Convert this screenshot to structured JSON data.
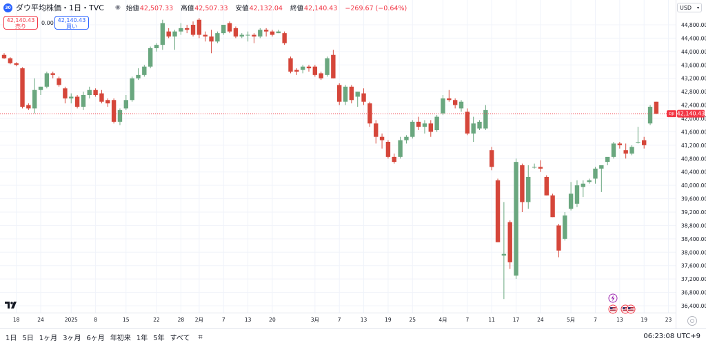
{
  "header": {
    "logo_text": "30",
    "symbol": "ダウ平均株価・1日・TVC",
    "ohlc": [
      {
        "label": "始値",
        "value": "42,507.33"
      },
      {
        "label": "高値",
        "value": "42,507.33"
      },
      {
        "label": "安値",
        "value": "42,132.04"
      },
      {
        "label": "終値",
        "value": "42,140.43"
      }
    ],
    "change": "−269.67 (−0.64%)"
  },
  "trade": {
    "sell_price": "42,140.43",
    "sell_label": "売り",
    "spread": "0.00",
    "buy_price": "42,140.43",
    "buy_label": "買い"
  },
  "currency": "USD",
  "price_tag": {
    "symbol": "DJI",
    "value": "42,140.43"
  },
  "bottom_bar": {
    "ranges": [
      "1日",
      "5日",
      "1ヶ月",
      "3ヶ月",
      "6ヶ月",
      "年初来",
      "1年",
      "5年",
      "すべて"
    ],
    "clock": "06:23:08 UTC+9"
  },
  "colors": {
    "up": "#6aa77f",
    "down": "#d5463a",
    "grid_line": "#f0f3fa",
    "last_price": "#f23645"
  },
  "icon_names": [
    "tradingview-logo-icon",
    "calendar-compare-icon",
    "settings-gear-icon",
    "eye-icon",
    "us-flag-event-icon",
    "lightning-event-icon"
  ],
  "chart_data": {
    "type": "candlestick",
    "title": "ダウ平均株価・1日・TVC",
    "ylim": [
      36300,
      45000
    ],
    "y_ticks": [
      44800,
      44400,
      44000,
      43600,
      43200,
      42800,
      42400,
      42000,
      41600,
      41200,
      40800,
      40400,
      40000,
      39600,
      39200,
      38800,
      38400,
      38000,
      37600,
      37200,
      36800,
      36400
    ],
    "x_tick_labels": [
      {
        "label": "18",
        "i": 2
      },
      {
        "label": "24",
        "i": 6
      },
      {
        "label": "2025",
        "i": 11
      },
      {
        "label": "8",
        "i": 15
      },
      {
        "label": "15",
        "i": 20
      },
      {
        "label": "22",
        "i": 25
      },
      {
        "label": "28",
        "i": 29
      },
      {
        "label": "2月",
        "i": 32
      },
      {
        "label": "7",
        "i": 36
      },
      {
        "label": "13",
        "i": 40
      },
      {
        "label": "20",
        "i": 44
      },
      {
        "label": "3月",
        "i": 51
      },
      {
        "label": "7",
        "i": 55
      },
      {
        "label": "13",
        "i": 59
      },
      {
        "label": "19",
        "i": 63
      },
      {
        "label": "25",
        "i": 67
      },
      {
        "label": "4月",
        "i": 72
      },
      {
        "label": "7",
        "i": 76
      },
      {
        "label": "11",
        "i": 80
      },
      {
        "label": "17",
        "i": 84
      },
      {
        "label": "24",
        "i": 88
      },
      {
        "label": "5月",
        "i": 93
      },
      {
        "label": "7",
        "i": 97
      },
      {
        "label": "13",
        "i": 101
      },
      {
        "label": "19",
        "i": 105
      },
      {
        "label": "23",
        "i": 109
      }
    ],
    "candles": [
      {
        "o": 43900,
        "h": 43950,
        "l": 43780,
        "c": 43800
      },
      {
        "o": 43800,
        "h": 43830,
        "l": 43620,
        "c": 43650
      },
      {
        "o": 43650,
        "h": 43680,
        "l": 43560,
        "c": 43600
      },
      {
        "o": 43500,
        "h": 43530,
        "l": 42300,
        "c": 42350
      },
      {
        "o": 42400,
        "h": 42450,
        "l": 42250,
        "c": 42300
      },
      {
        "o": 42300,
        "h": 43200,
        "l": 42150,
        "c": 42850
      },
      {
        "o": 42850,
        "h": 42950,
        "l": 42700,
        "c": 42950
      },
      {
        "o": 42950,
        "h": 43400,
        "l": 42900,
        "c": 43350
      },
      {
        "o": 43350,
        "h": 43400,
        "l": 43200,
        "c": 43300
      },
      {
        "o": 43200,
        "h": 43250,
        "l": 42950,
        "c": 43000
      },
      {
        "o": 42900,
        "h": 42950,
        "l": 42450,
        "c": 42600
      },
      {
        "o": 42600,
        "h": 42750,
        "l": 42450,
        "c": 42650
      },
      {
        "o": 42650,
        "h": 42700,
        "l": 42300,
        "c": 42350
      },
      {
        "o": 42350,
        "h": 42800,
        "l": 42250,
        "c": 42700
      },
      {
        "o": 42700,
        "h": 42950,
        "l": 42600,
        "c": 42850
      },
      {
        "o": 42850,
        "h": 42900,
        "l": 42650,
        "c": 42700
      },
      {
        "o": 42750,
        "h": 42850,
        "l": 42450,
        "c": 42500
      },
      {
        "o": 42550,
        "h": 42600,
        "l": 42350,
        "c": 42450
      },
      {
        "o": 42550,
        "h": 42600,
        "l": 41850,
        "c": 41900
      },
      {
        "o": 41900,
        "h": 42300,
        "l": 41800,
        "c": 42250
      },
      {
        "o": 42300,
        "h": 42700,
        "l": 42250,
        "c": 42550
      },
      {
        "o": 42550,
        "h": 43250,
        "l": 42500,
        "c": 43200
      },
      {
        "o": 43200,
        "h": 43500,
        "l": 43150,
        "c": 43300
      },
      {
        "o": 43300,
        "h": 43600,
        "l": 43250,
        "c": 43550
      },
      {
        "o": 43550,
        "h": 44150,
        "l": 43500,
        "c": 44100
      },
      {
        "o": 44100,
        "h": 44250,
        "l": 44000,
        "c": 44200
      },
      {
        "o": 44200,
        "h": 44950,
        "l": 44050,
        "c": 44850
      },
      {
        "o": 44600,
        "h": 44700,
        "l": 44400,
        "c": 44450
      },
      {
        "o": 44450,
        "h": 44650,
        "l": 44050,
        "c": 44600
      },
      {
        "o": 44600,
        "h": 44850,
        "l": 44500,
        "c": 44700
      },
      {
        "o": 44700,
        "h": 44800,
        "l": 44550,
        "c": 44650
      },
      {
        "o": 44800,
        "h": 44900,
        "l": 44450,
        "c": 44500
      },
      {
        "o": 44950,
        "h": 45000,
        "l": 44400,
        "c": 44500
      },
      {
        "o": 44500,
        "h": 44600,
        "l": 44300,
        "c": 44450
      },
      {
        "o": 44450,
        "h": 44650,
        "l": 43950,
        "c": 44300
      },
      {
        "o": 44300,
        "h": 44600,
        "l": 44250,
        "c": 44550
      },
      {
        "o": 44550,
        "h": 44800,
        "l": 44500,
        "c": 44800
      },
      {
        "o": 44850,
        "h": 44900,
        "l": 44550,
        "c": 44600
      },
      {
        "o": 44700,
        "h": 44750,
        "l": 44400,
        "c": 44450
      },
      {
        "o": 44450,
        "h": 44550,
        "l": 44400,
        "c": 44500
      },
      {
        "o": 44500,
        "h": 44600,
        "l": 44300,
        "c": 44500
      },
      {
        "o": 44500,
        "h": 44550,
        "l": 44250,
        "c": 44450
      },
      {
        "o": 44450,
        "h": 44700,
        "l": 44400,
        "c": 44650
      },
      {
        "o": 44650,
        "h": 44700,
        "l": 44450,
        "c": 44600
      },
      {
        "o": 44600,
        "h": 44650,
        "l": 44450,
        "c": 44500
      },
      {
        "o": 44550,
        "h": 44650,
        "l": 44550,
        "c": 44600
      },
      {
        "o": 44550,
        "h": 44600,
        "l": 44200,
        "c": 44250
      },
      {
        "o": 43800,
        "h": 43850,
        "l": 43350,
        "c": 43400
      },
      {
        "o": 43450,
        "h": 43500,
        "l": 43300,
        "c": 43400
      },
      {
        "o": 43450,
        "h": 43600,
        "l": 43350,
        "c": 43550
      },
      {
        "o": 43550,
        "h": 43600,
        "l": 43400,
        "c": 43500
      },
      {
        "o": 43550,
        "h": 43600,
        "l": 43250,
        "c": 43300
      },
      {
        "o": 43350,
        "h": 43400,
        "l": 43150,
        "c": 43200
      },
      {
        "o": 43300,
        "h": 43850,
        "l": 43250,
        "c": 43800
      },
      {
        "o": 43900,
        "h": 44050,
        "l": 43200,
        "c": 43200
      },
      {
        "o": 43000,
        "h": 43050,
        "l": 42400,
        "c": 42500
      },
      {
        "o": 42500,
        "h": 43000,
        "l": 42400,
        "c": 42950
      },
      {
        "o": 42950,
        "h": 43000,
        "l": 42450,
        "c": 42550
      },
      {
        "o": 42650,
        "h": 42800,
        "l": 42350,
        "c": 42800
      },
      {
        "o": 42750,
        "h": 42900,
        "l": 42400,
        "c": 42500
      },
      {
        "o": 42450,
        "h": 42500,
        "l": 41750,
        "c": 41850
      },
      {
        "o": 41850,
        "h": 41950,
        "l": 41250,
        "c": 41450
      },
      {
        "o": 41450,
        "h": 41550,
        "l": 41100,
        "c": 41350
      },
      {
        "o": 41300,
        "h": 41350,
        "l": 40800,
        "c": 40850
      },
      {
        "o": 40850,
        "h": 40950,
        "l": 40650,
        "c": 40700
      },
      {
        "o": 40850,
        "h": 41450,
        "l": 40800,
        "c": 41350
      },
      {
        "o": 41350,
        "h": 41500,
        "l": 41250,
        "c": 41450
      },
      {
        "o": 41450,
        "h": 41950,
        "l": 41400,
        "c": 41900
      },
      {
        "o": 41900,
        "h": 42050,
        "l": 41650,
        "c": 41750
      },
      {
        "o": 41750,
        "h": 41950,
        "l": 41550,
        "c": 41850
      },
      {
        "o": 41850,
        "h": 41950,
        "l": 41450,
        "c": 41600
      },
      {
        "o": 41650,
        "h": 42100,
        "l": 41600,
        "c": 42050
      },
      {
        "o": 42150,
        "h": 42700,
        "l": 42100,
        "c": 42600
      },
      {
        "o": 42600,
        "h": 42850,
        "l": 42500,
        "c": 42550
      },
      {
        "o": 42550,
        "h": 42600,
        "l": 42300,
        "c": 42400
      },
      {
        "o": 42300,
        "h": 42550,
        "l": 42200,
        "c": 42500
      },
      {
        "o": 42200,
        "h": 42300,
        "l": 41500,
        "c": 41550
      },
      {
        "o": 41550,
        "h": 42050,
        "l": 41300,
        "c": 41850
      },
      {
        "o": 41700,
        "h": 41950,
        "l": 41650,
        "c": 41900
      },
      {
        "o": 41700,
        "h": 42400,
        "l": 41650,
        "c": 42250
      },
      {
        "o": 41050,
        "h": 41150,
        "l": 40450,
        "c": 40550
      },
      {
        "o": 40150,
        "h": 40200,
        "l": 38300,
        "c": 38300
      },
      {
        "o": 37900,
        "h": 39500,
        "l": 36600,
        "c": 37950
      },
      {
        "o": 38900,
        "h": 38950,
        "l": 37500,
        "c": 37700
      },
      {
        "o": 37300,
        "h": 40800,
        "l": 37200,
        "c": 40700
      },
      {
        "o": 40600,
        "h": 40650,
        "l": 39200,
        "c": 39500
      },
      {
        "o": 39500,
        "h": 40600,
        "l": 39300,
        "c": 40250
      },
      {
        "o": 40550,
        "h": 40650,
        "l": 40500,
        "c": 40550
      },
      {
        "o": 40550,
        "h": 40750,
        "l": 40400,
        "c": 40500
      },
      {
        "o": 40250,
        "h": 40300,
        "l": 39700,
        "c": 39700
      },
      {
        "o": 39700,
        "h": 39750,
        "l": 39050,
        "c": 39050
      },
      {
        "o": 38800,
        "h": 38850,
        "l": 37850,
        "c": 38050
      },
      {
        "o": 38400,
        "h": 39200,
        "l": 38350,
        "c": 39100
      },
      {
        "o": 39300,
        "h": 40100,
        "l": 39250,
        "c": 39750
      },
      {
        "o": 39450,
        "h": 40150,
        "l": 39350,
        "c": 40000
      },
      {
        "o": 39950,
        "h": 40150,
        "l": 39650,
        "c": 40050
      },
      {
        "o": 40100,
        "h": 40200,
        "l": 40050,
        "c": 40150
      },
      {
        "o": 40200,
        "h": 40550,
        "l": 40050,
        "c": 40500
      },
      {
        "o": 40500,
        "h": 40600,
        "l": 39800,
        "c": 40600
      },
      {
        "o": 40700,
        "h": 40800,
        "l": 40600,
        "c": 40850
      },
      {
        "o": 40850,
        "h": 41300,
        "l": 40800,
        "c": 41250
      },
      {
        "o": 41250,
        "h": 41300,
        "l": 41100,
        "c": 41200
      },
      {
        "o": 41050,
        "h": 41250,
        "l": 40800,
        "c": 40950
      },
      {
        "o": 40950,
        "h": 41200,
        "l": 40900,
        "c": 41150
      },
      {
        "o": 41300,
        "h": 41750,
        "l": 41250,
        "c": 41300
      },
      {
        "o": 41350,
        "h": 41450,
        "l": 41100,
        "c": 41200
      },
      {
        "o": 41850,
        "h": 42400,
        "l": 41800,
        "c": 42350
      },
      {
        "o": 42500,
        "h": 42500,
        "l": 42130,
        "c": 42140
      }
    ],
    "last_price": 42140.43
  }
}
